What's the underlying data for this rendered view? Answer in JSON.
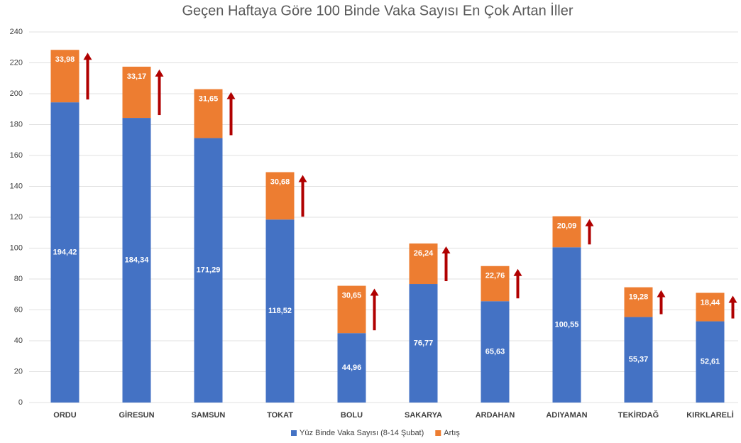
{
  "chart_data": {
    "type": "stacked_bar",
    "title": "Geçen Haftaya Göre 100 Binde Vaka Sayısı En Çok Artan İller",
    "categories": [
      "ORDU",
      "GİRESUN",
      "SAMSUN",
      "TOKAT",
      "BOLU",
      "SAKARYA",
      "ARDAHAN",
      "ADIYAMAN",
      "TEKİRDAĞ",
      "KIRKLARELİ"
    ],
    "series": [
      {
        "name": "Yüz Binde Vaka Sayısı (8-14 Şubat)",
        "color": "#4472c4",
        "values": [
          194.42,
          184.34,
          171.29,
          118.52,
          44.96,
          76.77,
          65.63,
          100.55,
          55.37,
          52.61
        ],
        "value_labels": [
          "194,42",
          "184,34",
          "171,29",
          "118,52",
          "44,96",
          "76,77",
          "65,63",
          "100,55",
          "55,37",
          "52,61"
        ]
      },
      {
        "name": "Artış",
        "color": "#ed7d31",
        "values": [
          33.98,
          33.17,
          31.65,
          30.68,
          30.65,
          26.24,
          22.76,
          20.09,
          19.28,
          18.44
        ],
        "value_labels": [
          "33,98",
          "33,17",
          "31,65",
          "30,68",
          "30,65",
          "26,24",
          "22,76",
          "20,09",
          "19,28",
          "18,44"
        ]
      }
    ],
    "ylim": [
      0,
      240
    ],
    "yticks": [
      0,
      20,
      40,
      60,
      80,
      100,
      120,
      140,
      160,
      180,
      200,
      220,
      240
    ],
    "grid": true,
    "legend": "bottom"
  }
}
